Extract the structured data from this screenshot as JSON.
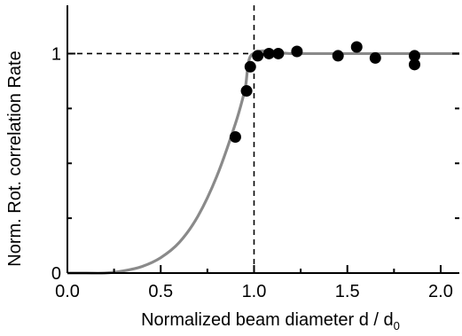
{
  "chart_data": {
    "type": "scatter",
    "title": "",
    "xlabel": "Normalized beam diameter d / d",
    "xlabel_subscript": "0",
    "ylabel": "Norm.  Rot. correlation Rate",
    "xlim": [
      0,
      2.1
    ],
    "ylim": [
      0,
      1.22
    ],
    "x_ticks": [
      0.0,
      0.5,
      1.0,
      1.5,
      2.0
    ],
    "x_tick_labels": [
      "0.0",
      "0.5",
      "1.0",
      "1.5",
      "2.0"
    ],
    "x_minor_ticks": [
      0.25,
      0.75,
      1.25,
      1.75
    ],
    "y_ticks": [
      0,
      1
    ],
    "y_tick_labels": [
      "0",
      "1"
    ],
    "y_minor_ticks": [
      0.25,
      0.5,
      0.75
    ],
    "reference_lines": {
      "vertical_x": 1.0,
      "horizontal_y": 1.0,
      "style": "dashed"
    },
    "grid": false,
    "series": [
      {
        "kind": "points",
        "color": "#000000",
        "x": [
          0.9,
          0.96,
          0.98,
          1.02,
          1.08,
          1.13,
          1.23,
          1.45,
          1.55,
          1.65,
          1.86,
          1.86
        ],
        "y": [
          0.62,
          0.83,
          0.94,
          0.99,
          1.0,
          1.0,
          1.01,
          0.99,
          1.03,
          0.98,
          0.95,
          0.99
        ]
      },
      {
        "kind": "fit-curve",
        "color": "#8a8a8a",
        "x": [
          0.0,
          0.1,
          0.2,
          0.3,
          0.4,
          0.5,
          0.6,
          0.7,
          0.8,
          0.9,
          0.95,
          1.0,
          1.2,
          1.5,
          1.8,
          2.1
        ],
        "y": [
          0.0,
          0.0,
          0.0,
          0.01,
          0.03,
          0.07,
          0.14,
          0.26,
          0.44,
          0.68,
          0.83,
          1.0,
          1.0,
          1.0,
          1.0,
          1.0
        ]
      }
    ]
  }
}
